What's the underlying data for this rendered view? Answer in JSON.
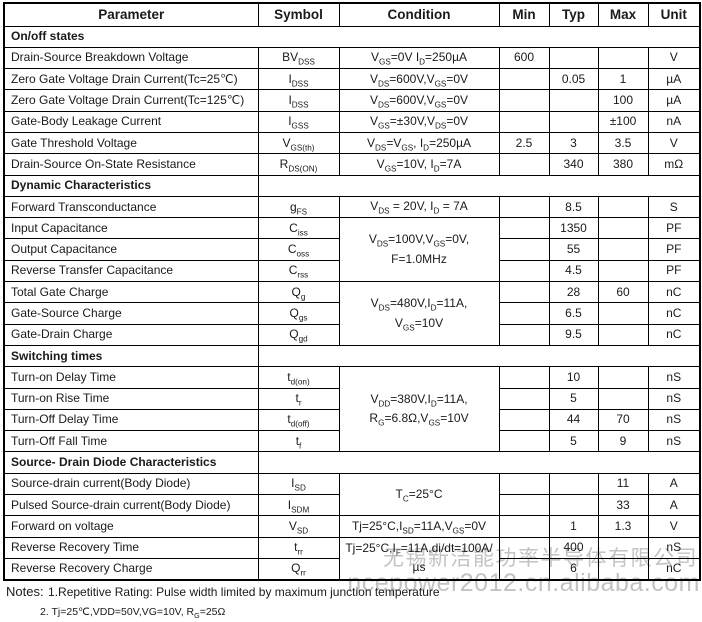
{
  "table": {
    "columns": [
      "Parameter",
      "Symbol",
      "Condition",
      "Min",
      "Typ",
      "Max",
      "Unit"
    ],
    "rows": [
      {
        "type": "section",
        "label": "On/off states",
        "divider": false
      },
      {
        "type": "data",
        "param": "Drain-Source Breakdown Voltage",
        "symbol": "BV~DSS~",
        "cond": "V~GS~=0V I~D~=250µA",
        "min": "600",
        "typ": "",
        "max": "",
        "unit": "V"
      },
      {
        "type": "data",
        "param": "Zero Gate Voltage Drain Current(Tc=25℃)",
        "symbol": "I~DSS~",
        "cond": "V~DS~=600V,V~GS~=0V",
        "min": "",
        "typ": "0.05",
        "max": "1",
        "unit": "µA"
      },
      {
        "type": "data",
        "param": "Zero Gate Voltage Drain Current(Tc=125℃)",
        "symbol": "I~DSS~",
        "cond": "V~DS~=600V,V~GS~=0V",
        "min": "",
        "typ": "",
        "max": "100",
        "unit": "µA"
      },
      {
        "type": "data",
        "param": "Gate-Body Leakage Current",
        "symbol": "I~GSS~",
        "cond": "V~GS~=±30V,V~DS~=0V",
        "min": "",
        "typ": "",
        "max": "±100",
        "unit": "nA"
      },
      {
        "type": "data",
        "param": "Gate Threshold Voltage",
        "symbol": "V~GS(th)~",
        "cond": "V~DS~=V~GS~, I~D~=250µA",
        "min": "2.5",
        "typ": "3",
        "max": "3.5",
        "unit": "V"
      },
      {
        "type": "data",
        "param": "Drain-Source On-State Resistance",
        "symbol": "R~DS(ON)~",
        "cond": "V~GS~=10V, I~D~=7A",
        "min": "",
        "typ": "340",
        "max": "380",
        "unit": "mΩ"
      },
      {
        "type": "section",
        "label": "Dynamic Characteristics",
        "divider": true
      },
      {
        "type": "data",
        "param": "Forward Transconductance",
        "symbol": "g~FS~",
        "cond": "V~DS~ = 20V, I~D~ = 7A",
        "min": "",
        "typ": "8.5",
        "max": "",
        "unit": "S"
      },
      {
        "type": "data",
        "param": "Input Capacitance",
        "symbol": "C~iss~",
        "cond": "V~DS~=100V,V~GS~=0V,\nF=1.0MHz",
        "condRowspan": 3,
        "min": "",
        "typ": "1350",
        "max": "",
        "unit": "PF"
      },
      {
        "type": "data",
        "param": "Output Capacitance",
        "symbol": "C~oss~",
        "cond": null,
        "min": "",
        "typ": "55",
        "max": "",
        "unit": "PF"
      },
      {
        "type": "data",
        "param": "Reverse Transfer Capacitance",
        "symbol": "C~rss~",
        "cond": null,
        "min": "",
        "typ": "4.5",
        "max": "",
        "unit": "PF"
      },
      {
        "type": "data",
        "param": "Total Gate Charge",
        "symbol": "Q~g~",
        "cond": "V~DS~=480V,I~D~=11A,\nV~GS~=10V",
        "condRowspan": 3,
        "min": "",
        "typ": "28",
        "max": "60",
        "unit": "nC"
      },
      {
        "type": "data",
        "param": "Gate-Source Charge",
        "symbol": "Q~gs~",
        "cond": null,
        "min": "",
        "typ": "6.5",
        "max": "",
        "unit": "nC"
      },
      {
        "type": "data",
        "param": "Gate-Drain Charge",
        "symbol": "Q~gd~",
        "cond": null,
        "min": "",
        "typ": "9.5",
        "max": "",
        "unit": "nC"
      },
      {
        "type": "section",
        "label": "Switching times",
        "divider": true
      },
      {
        "type": "data",
        "param": "Turn-on Delay Time",
        "symbol": "t~d(on)~",
        "cond": "V~DD~=380V,I~D~=11A,\nR~G~=6.8Ω,V~GS~=10V",
        "condRowspan": 4,
        "min": "",
        "typ": "10",
        "max": "",
        "unit": "nS"
      },
      {
        "type": "data",
        "param": "Turn-on Rise Time",
        "symbol": "t~r~",
        "cond": null,
        "min": "",
        "typ": "5",
        "max": "",
        "unit": "nS"
      },
      {
        "type": "data",
        "param": "Turn-Off Delay Time",
        "symbol": "t~d(off)~",
        "cond": null,
        "min": "",
        "typ": "44",
        "max": "70",
        "unit": "nS"
      },
      {
        "type": "data",
        "param": "Turn-Off Fall Time",
        "symbol": "t~f~",
        "cond": null,
        "min": "",
        "typ": "5",
        "max": "9",
        "unit": "nS"
      },
      {
        "type": "section",
        "label": "Source- Drain Diode Characteristics",
        "divider": true
      },
      {
        "type": "data",
        "param": "Source-drain current(Body Diode)",
        "symbol": "I~SD~",
        "cond": "T~C~=25°C",
        "condRowspan": 2,
        "min": "",
        "typ": "",
        "max": "11",
        "unit": "A"
      },
      {
        "type": "data",
        "param": "Pulsed Source-drain current(Body Diode)",
        "symbol": "I~SDM~",
        "cond": null,
        "min": "",
        "typ": "",
        "max": "33",
        "unit": "A"
      },
      {
        "type": "data",
        "param": "Forward on voltage",
        "symbol": "V~SD~",
        "cond": "Tj=25°C,I~SD~=11A,V~GS~=0V",
        "min": "",
        "typ": "1",
        "max": "1.3",
        "unit": "V"
      },
      {
        "type": "data",
        "param": "Reverse Recovery Time",
        "symbol": "t~rr~",
        "cond": "Tj=25°C,I~F~=11A,di/dt=100A/µs",
        "condRowspan": 2,
        "min": "",
        "typ": "400",
        "max": "",
        "unit": "nS"
      },
      {
        "type": "data",
        "param": "Reverse Recovery Charge",
        "symbol": "Q~rr~",
        "cond": null,
        "min": "",
        "typ": "6",
        "max": "",
        "unit": "nC"
      }
    ]
  },
  "notes": {
    "label": "Notes:",
    "items": [
      "1.Repetitive Rating: Pulse width limited by maximum junction temperature",
      "2. Tj=25℃,VDD=50V,VG=10V, R~G~=25Ω"
    ]
  },
  "watermark": {
    "company": "无锡新洁能功率半导体有限公司",
    "url": "ncepower2012.cn.alibaba.com"
  },
  "colors": {
    "border": "#000000",
    "text": "#1a1a1a",
    "watermark": "#c3c3c3"
  }
}
